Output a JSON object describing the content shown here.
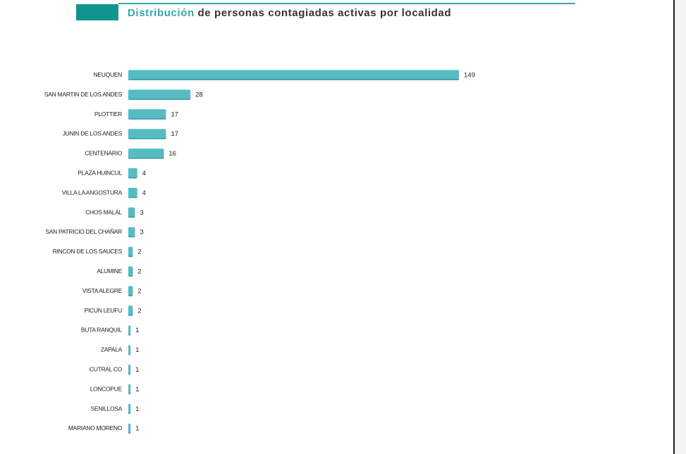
{
  "header": {
    "title_accent": "Distribución",
    "title_rest": " de personas contagiadas activas por localidad"
  },
  "colors": {
    "accent": "#3aa6a9",
    "header_block": "#12958f",
    "bar_fill": "#55bcc3",
    "bar_shadow": "#3a9aa1"
  },
  "chart_data": {
    "type": "bar",
    "orientation": "horizontal",
    "title": "Distribución de personas contagiadas activas por localidad",
    "categories": [
      "NEUQUEN",
      "SAN MARTIN DE LOS ANDES",
      "PLOTTIER",
      "JUNIN DE LOS ANDES",
      "CENTENARIO",
      "PLAZA HUINCUL",
      "VILLA LA ANGOSTURA",
      "CHOS MALAL",
      "SAN PATRICIO DEL CHAÑAR",
      "RINCON DE LOS SAUCES",
      "ALUMINE",
      "VISTA ALEGRE",
      "PICUN LEUFU",
      "BUTA RANQUIL",
      "ZAPALA",
      "CUTRAL CO",
      "LONCOPUE",
      "SENILLOSA",
      "MARIANO MORENO"
    ],
    "values": [
      149,
      28,
      17,
      17,
      16,
      4,
      4,
      3,
      3,
      2,
      2,
      2,
      2,
      1,
      1,
      1,
      1,
      1,
      1
    ],
    "xlim": [
      0,
      149
    ],
    "grid": false,
    "legend": "none"
  }
}
